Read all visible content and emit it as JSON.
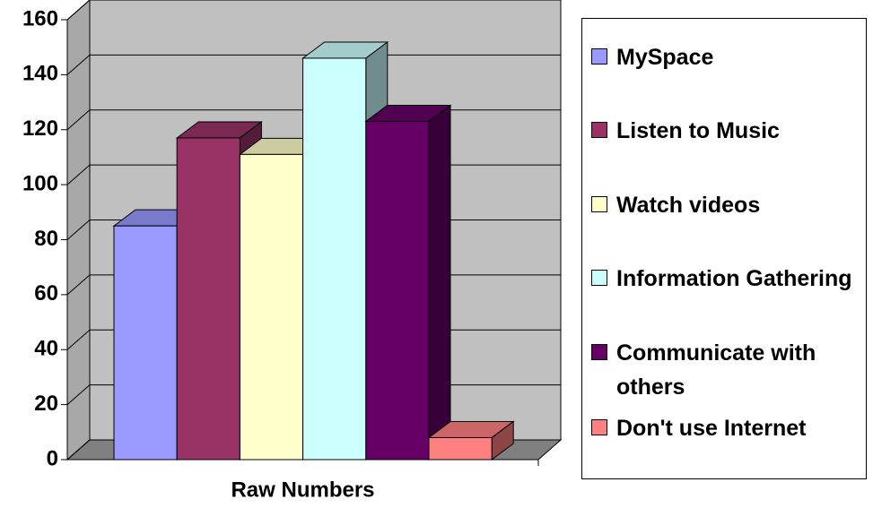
{
  "chart_data": {
    "type": "bar3d",
    "categories": [
      "Raw Numbers"
    ],
    "series": [
      {
        "name": "MySpace",
        "color": "#9999ff",
        "values": [
          85
        ]
      },
      {
        "name": "Listen to Music",
        "color": "#993366",
        "values": [
          117
        ]
      },
      {
        "name": "Watch videos",
        "color": "#ffffcc",
        "values": [
          111
        ]
      },
      {
        "name": "Information Gathering",
        "color": "#ccffff",
        "values": [
          146
        ]
      },
      {
        "name": "Communicate with others",
        "color": "#660066",
        "values": [
          123
        ]
      },
      {
        "name": "Don't use Internet",
        "color": "#ff8080",
        "values": [
          8
        ]
      }
    ],
    "ylim": [
      0,
      160
    ],
    "yticks": [
      0,
      20,
      40,
      60,
      80,
      100,
      120,
      140,
      160
    ],
    "grid": true
  }
}
